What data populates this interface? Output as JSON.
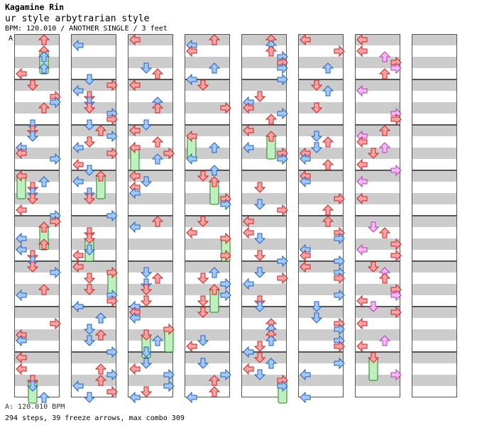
{
  "header": {
    "artist": "Kagamine Rin",
    "title": "ur style arbytrarian style",
    "info": "BPM: 120.010 / ANOTHER SINGLE / 3 feet"
  },
  "chart": {
    "marker": "A",
    "columns": 8,
    "measures_per_column": 8,
    "lanes": [
      "left",
      "down",
      "up",
      "right"
    ],
    "colors": {
      "quarter_fill": "#f4a4a4",
      "quarter_stroke": "#d02020",
      "eighth_fill": "#a4c8f4",
      "eighth_stroke": "#2060c0",
      "other_fill": "#f4b8f4",
      "other_stroke": "#b040b0",
      "freeze_fill": "#c0f0c0",
      "freeze_stroke": "#208020",
      "band": "#cccccc"
    }
  },
  "footer": {
    "bpm_line": "A: 120.010 BPM",
    "stats_line": "294 steps, 39 freeze arrows, max combo 309"
  }
}
